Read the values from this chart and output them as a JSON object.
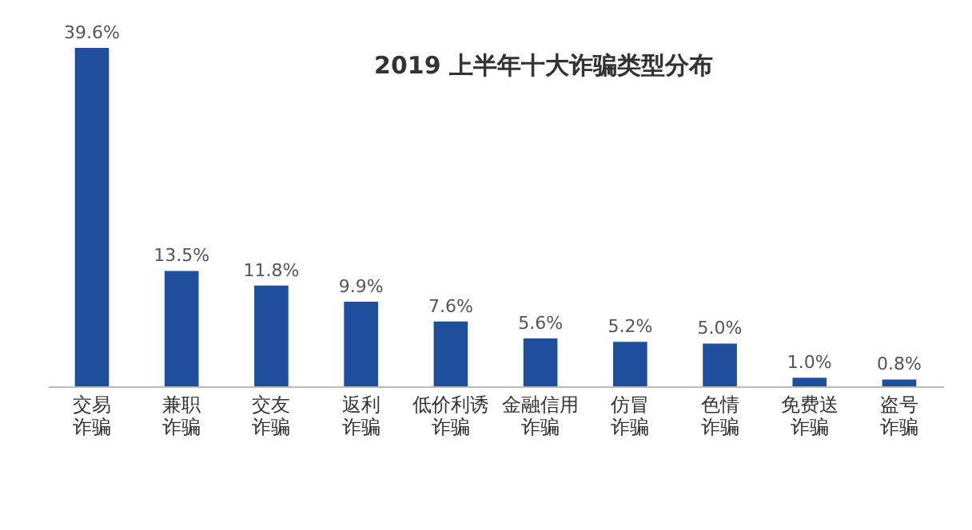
{
  "chart_data": {
    "type": "bar",
    "title": "2019 上半年十大诈骗类型分布",
    "categories": [
      "交易诈骗",
      "兼职诈骗",
      "交友诈骗",
      "返利诈骗",
      "低价利诱诈骗",
      "金融信用诈骗",
      "仿冒诈骗",
      "色情诈骗",
      "免费送诈骗",
      "盗号诈骗"
    ],
    "values": [
      39.6,
      13.5,
      11.8,
      9.9,
      7.6,
      5.6,
      5.2,
      5.0,
      1.0,
      0.8
    ],
    "value_labels": [
      "39.6%",
      "13.5%",
      "11.8%",
      "9.9%",
      "7.6%",
      "5.6%",
      "5.2%",
      "5.0%",
      "1.0%",
      "0.8%"
    ],
    "color": "#1f4e9c",
    "tick_labels": "x",
    "grid": false
  }
}
